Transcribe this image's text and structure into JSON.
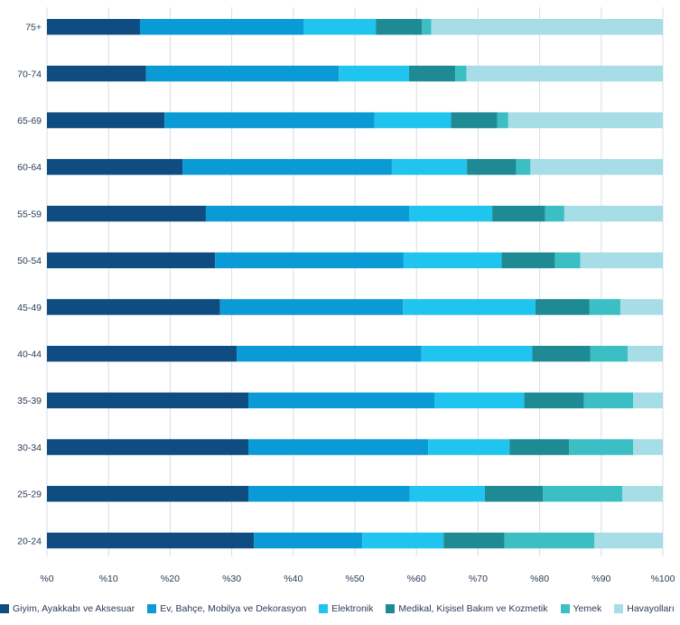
{
  "chart_data": {
    "type": "bar",
    "orientation": "horizontal",
    "stacked": true,
    "xlim": [
      0,
      100
    ],
    "x_ticks": [
      "%0",
      "%10",
      "%20",
      "%30",
      "%40",
      "%50",
      "%60",
      "%70",
      "%80",
      "%90",
      "%100"
    ],
    "grid": true,
    "legend_position": "bottom",
    "categories": [
      "75+",
      "70-74",
      "65-69",
      "60-64",
      "55-59",
      "50-54",
      "45-49",
      "40-44",
      "35-39",
      "30-34",
      "25-29",
      "20-24"
    ],
    "series": [
      {
        "name": "Giyim, Ayakkabı ve Aksesuar",
        "color": "#0f4c81",
        "values": [
          15.1,
          16.1,
          19.1,
          22.0,
          25.8,
          27.3,
          28.1,
          30.8,
          32.7,
          32.7,
          32.7,
          33.6
        ]
      },
      {
        "name": "Ev, Bahçe, Mobilya ve Dekorasyon",
        "color": "#0a9ad6",
        "values": [
          26.6,
          31.3,
          34.1,
          34.0,
          33.0,
          30.6,
          29.7,
          30.0,
          30.2,
          29.2,
          26.2,
          17.6
        ]
      },
      {
        "name": "Elektronik",
        "color": "#1fc4ef",
        "values": [
          11.7,
          11.4,
          12.4,
          12.2,
          13.5,
          15.9,
          21.5,
          18.0,
          14.6,
          13.2,
          12.2,
          13.2
        ]
      },
      {
        "name": "Medikal, Kişisel Bakım ve Kozmetik",
        "color": "#1e8a94",
        "values": [
          7.5,
          7.5,
          7.5,
          8.0,
          8.6,
          8.7,
          8.8,
          9.4,
          9.7,
          9.7,
          9.4,
          9.9
        ]
      },
      {
        "name": "Yemek",
        "color": "#3bbfc4",
        "values": [
          1.5,
          1.8,
          1.8,
          2.3,
          3.1,
          4.1,
          5.0,
          6.1,
          8.0,
          10.4,
          12.9,
          14.6
        ]
      },
      {
        "name": "Havayolları",
        "color": "#a6dde6",
        "values": [
          37.6,
          31.9,
          25.1,
          21.5,
          16.0,
          13.4,
          6.9,
          5.7,
          4.8,
          4.8,
          6.6,
          11.1
        ]
      }
    ]
  }
}
